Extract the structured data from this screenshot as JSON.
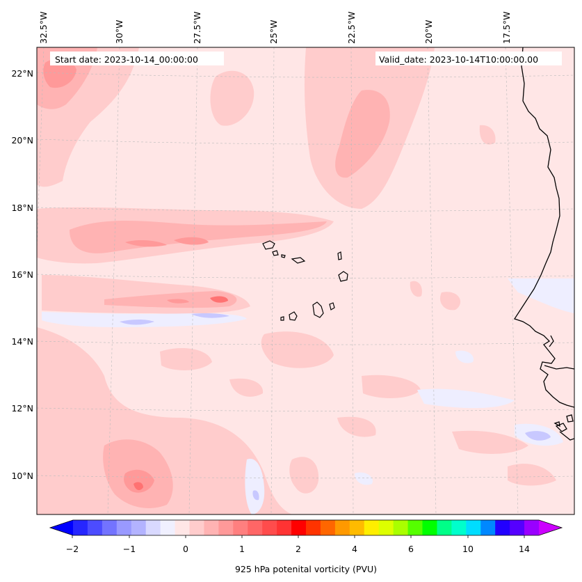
{
  "chart_data": {
    "type": "map",
    "header": {
      "start_date": "Start date: 2023-10-14_00:00:00",
      "valid_date": "Valid_date: 2023-10-14T10:00:00.00"
    },
    "lon_labels": [
      "32.5°W",
      "30°W",
      "27.5°W",
      "25°W",
      "22.5°W",
      "20°W",
      "17.5°W"
    ],
    "lat_labels": [
      "22°N",
      "20°N",
      "18°N",
      "16°N",
      "14°N",
      "12°N",
      "10°N"
    ],
    "colorbar": {
      "label": "925 hPa potenital vorticity (PVU)",
      "tick_labels": [
        "−2",
        "−1",
        "0",
        "1",
        "2",
        "4",
        "6",
        "10",
        "14"
      ],
      "colors": [
        "#0000ff",
        "#2626ff",
        "#4c4cff",
        "#7373ff",
        "#9999ff",
        "#b3b3ff",
        "#d9d9ff",
        "#f0f0ff",
        "#ffe6e6",
        "#ffcccc",
        "#ffb3b3",
        "#ff9999",
        "#ff7f7f",
        "#ff6666",
        "#ff4c4c",
        "#ff3333",
        "#ff0000",
        "#ff3300",
        "#ff6600",
        "#ff9900",
        "#ffbb00",
        "#ffee00",
        "#ddff00",
        "#aaff00",
        "#55ff00",
        "#00ff00",
        "#00ff88",
        "#00ffcc",
        "#00ddff",
        "#0088ff",
        "#2200ff",
        "#5500ff",
        "#9900ff"
      ],
      "over_color": "#cc00ff"
    },
    "field_colors": {
      "background": "#ffe6e6",
      "light_pink": "#ffcccc",
      "mid_pink": "#ffb3b3",
      "strong_pink": "#ff9999",
      "red": "#ff7272",
      "light_blue": "#eeeeff",
      "blue": "#c8c8ff"
    }
  }
}
